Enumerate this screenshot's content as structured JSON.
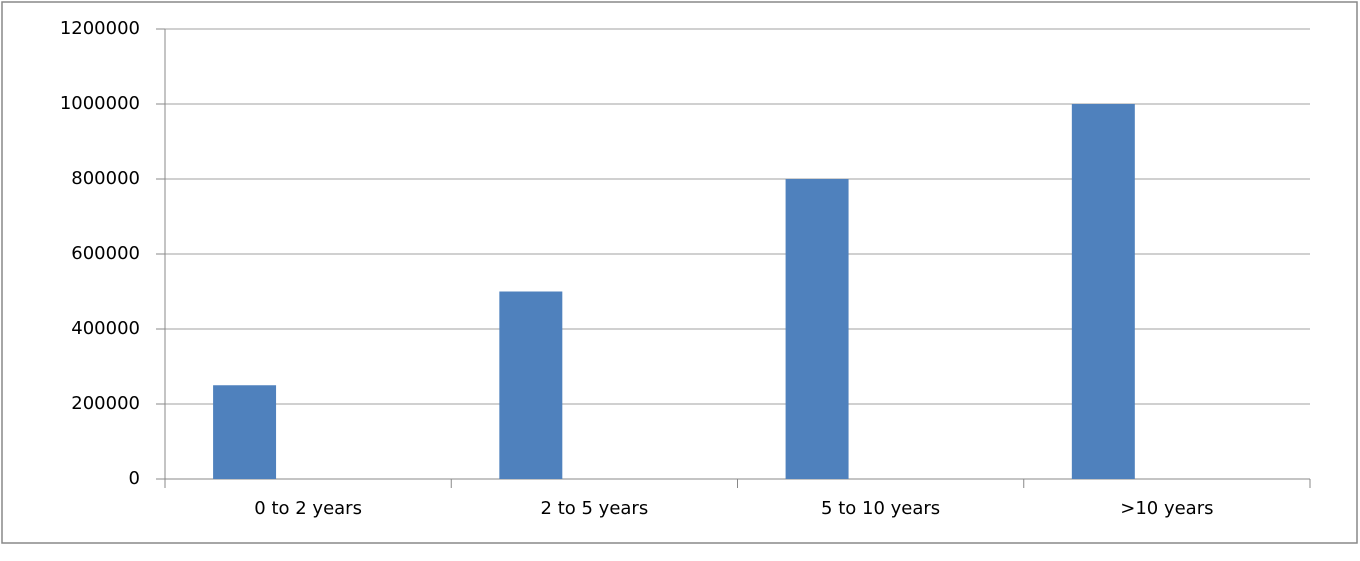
{
  "chart_data": {
    "type": "bar",
    "categories": [
      "0 to 2 years",
      "2 to 5 years",
      "5 to 10 years",
      ">10 years"
    ],
    "values": [
      250000,
      500000,
      800000,
      1000000
    ],
    "color": "#4f81bd",
    "ylim": [
      0,
      1200000
    ],
    "yticks": [
      0,
      200000,
      400000,
      600000,
      800000,
      1000000,
      1200000
    ],
    "grid": true
  }
}
